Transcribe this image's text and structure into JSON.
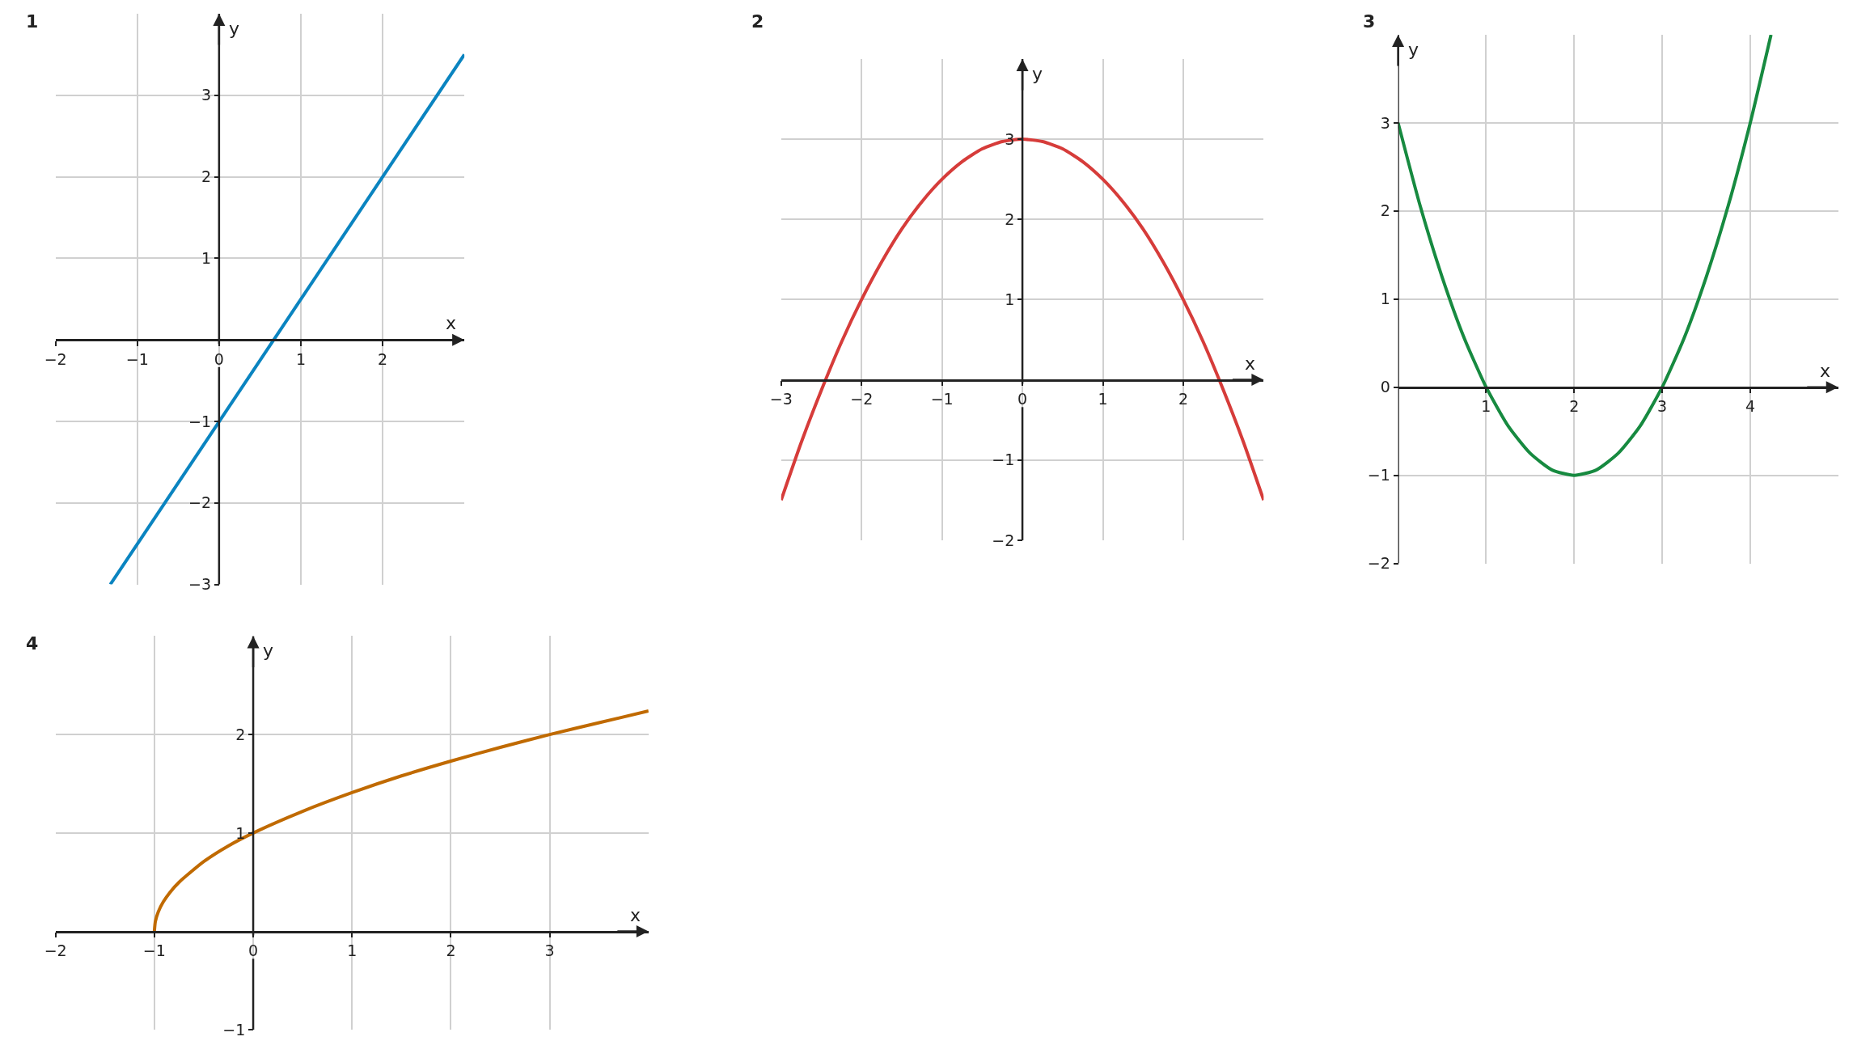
{
  "chart_data": [
    {
      "type": "line",
      "title": "1",
      "xlabel": "x",
      "ylabel": "y",
      "x": [
        -1.33,
        3
      ],
      "values": [
        -3,
        3.5
      ],
      "color": "#0a84c0",
      "xlim": [
        -2,
        3
      ],
      "ylim": [
        -3,
        4
      ],
      "xticks": [
        -2,
        -1,
        0,
        1,
        2
      ],
      "yticks": [
        -3,
        -2,
        -1,
        1,
        2,
        3
      ],
      "grid": true
    },
    {
      "type": "line",
      "title": "2",
      "xlabel": "x",
      "ylabel": "y",
      "x": [
        -3,
        -2.75,
        -2.5,
        -2.25,
        -2,
        -1.75,
        -1.5,
        -1.25,
        -1,
        -0.75,
        -0.5,
        -0.25,
        0,
        0.25,
        0.5,
        0.75,
        1,
        1.25,
        1.5,
        1.75,
        2,
        2.25,
        2.5,
        2.75,
        3
      ],
      "values": [
        -1.5,
        -0.78,
        -0.13,
        0.47,
        1,
        1.47,
        1.88,
        2.22,
        2.5,
        2.72,
        2.88,
        2.97,
        3,
        2.97,
        2.88,
        2.72,
        2.5,
        2.22,
        1.88,
        1.47,
        1,
        0.47,
        -0.13,
        -0.78,
        -1.5
      ],
      "color": "#d63c3a",
      "xlim": [
        -3,
        3
      ],
      "ylim": [
        -2,
        4
      ],
      "xticks": [
        -3,
        -2,
        -1,
        0,
        1,
        2
      ],
      "yticks": [
        -2,
        -1,
        1,
        2,
        3
      ],
      "grid": true
    },
    {
      "type": "line",
      "title": "3",
      "xlabel": "x",
      "ylabel": "y",
      "x": [
        0,
        0.25,
        0.5,
        0.75,
        1,
        1.25,
        1.5,
        1.75,
        2,
        2.25,
        2.5,
        2.75,
        3,
        3.25,
        3.5,
        3.75,
        4,
        4.236
      ],
      "values": [
        3,
        2.06,
        1.25,
        0.56,
        0,
        -0.44,
        -0.75,
        -0.94,
        -1,
        -0.94,
        -0.75,
        -0.44,
        0,
        0.56,
        1.25,
        2.06,
        3,
        4
      ],
      "color": "#178a40",
      "xlim": [
        0,
        5
      ],
      "ylim": [
        -2,
        4
      ],
      "xticks": [
        1,
        2,
        3,
        4
      ],
      "yticks": [
        -2,
        -1,
        0,
        1,
        2,
        3
      ],
      "grid": true
    },
    {
      "type": "line",
      "title": "4",
      "xlabel": "x",
      "ylabel": "y",
      "x": [
        -1,
        -0.99,
        -0.96,
        -0.91,
        -0.84,
        -0.75,
        -0.5,
        -0.25,
        0,
        0.5,
        1,
        1.5,
        2,
        2.5,
        3,
        3.5,
        4
      ],
      "values": [
        0,
        0.1,
        0.2,
        0.3,
        0.4,
        0.5,
        0.71,
        0.87,
        1,
        1.22,
        1.41,
        1.58,
        1.73,
        1.87,
        2,
        2.12,
        2.24
      ],
      "color": "#c06a00",
      "xlim": [
        -2,
        4
      ],
      "ylim": [
        -1,
        3
      ],
      "xticks": [
        -2,
        -1,
        0,
        1,
        2,
        3
      ],
      "yticks": [
        -1,
        1,
        2
      ],
      "grid": true
    }
  ]
}
